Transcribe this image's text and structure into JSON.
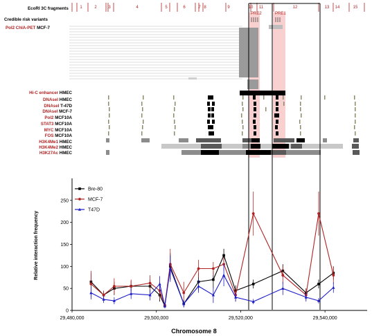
{
  "header": {
    "fragments_label": "EcoRI 3C fragments",
    "fragment_numbers": [
      "1",
      "2",
      "3",
      "4",
      "5",
      "6",
      "7",
      "8",
      "9",
      "10",
      "11",
      "12",
      "13",
      "14",
      "15"
    ],
    "risk_label": "Credible risk variants",
    "pre_labels": [
      "PRE2",
      "PRE1"
    ]
  },
  "tracks": [
    {
      "mark": "Pol2 ChIA-PET",
      "cell": "MCF-7"
    },
    {
      "mark": "Hi-C enhancer",
      "cell": "HMEC"
    },
    {
      "mark": "DNAseI",
      "cell": "HMEC"
    },
    {
      "mark": "DNAseI",
      "cell": "T-47D"
    },
    {
      "mark": "DNAseI",
      "cell": "MCF-7"
    },
    {
      "mark": "Pol2",
      "cell": "MCF10A"
    },
    {
      "mark": "STAT3",
      "cell": "MCF10A"
    },
    {
      "mark": "MYC",
      "cell": "MCF10A"
    },
    {
      "mark": "FOS",
      "cell": "MCF10A"
    },
    {
      "mark": "H3K4Me1",
      "cell": "HMEC"
    },
    {
      "mark": "H3K4Me2",
      "cell": "HMEC"
    },
    {
      "mark": "H3K27Ac",
      "cell": "HMEC"
    }
  ],
  "colors": {
    "bre80": "#000000",
    "mcf7": "#b22222",
    "t47d": "#1c1cc8",
    "track_label_red": "#b22222",
    "pre_highlight": "#f4a9a9",
    "signal_gray": "#8c8c8c"
  },
  "chart_data": {
    "type": "line",
    "xlabel": "Chromosome 8",
    "ylabel": "Relative interaction frequency",
    "xlim": [
      29480000,
      29550000
    ],
    "ylim": [
      0,
      300
    ],
    "x_ticks": [
      29480000,
      29500000,
      29520000,
      29540000
    ],
    "x_tick_labels": [
      "29,480,000",
      "29,500,000",
      "29,520,000",
      "29,540,000"
    ],
    "y_ticks": [
      0,
      50,
      100,
      150,
      200,
      250
    ],
    "x": [
      29484500,
      29487500,
      29490000,
      29494000,
      29498500,
      29500800,
      29502000,
      29503300,
      29506500,
      29510000,
      29513500,
      29516000,
      29518800,
      29523000,
      29530000,
      29535500,
      29538500,
      29542000
    ],
    "series": [
      {
        "name": "Bre-80",
        "color": "#000000",
        "marker": "square",
        "values": [
          65,
          35,
          50,
          55,
          55,
          35,
          10,
          100,
          15,
          65,
          70,
          125,
          45,
          60,
          90,
          40,
          60,
          85
        ],
        "errors": [
          20,
          8,
          15,
          12,
          15,
          15,
          5,
          30,
          8,
          20,
          20,
          15,
          12,
          10,
          15,
          10,
          10,
          15
        ]
      },
      {
        "name": "MCF-7",
        "color": "#b22222",
        "marker": "circle",
        "values": [
          60,
          35,
          55,
          55,
          62,
          45,
          12,
          105,
          40,
          95,
          95,
          105,
          35,
          220,
          80,
          35,
          220,
          80
        ],
        "errors": [
          30,
          10,
          18,
          15,
          18,
          20,
          6,
          35,
          25,
          20,
          15,
          15,
          15,
          50,
          20,
          12,
          50,
          20
        ]
      },
      {
        "name": "T47D",
        "color": "#1c1cc8",
        "marker": "triangle",
        "values": [
          40,
          25,
          22,
          38,
          35,
          60,
          10,
          95,
          15,
          55,
          35,
          80,
          30,
          20,
          50,
          30,
          22,
          52
        ],
        "errors": [
          15,
          8,
          8,
          12,
          12,
          18,
          5,
          30,
          8,
          15,
          18,
          25,
          10,
          6,
          15,
          10,
          6,
          12
        ]
      }
    ],
    "highlight_boxes": [
      [
        29521500,
        29527000
      ],
      [
        29527000,
        29540500
      ]
    ]
  }
}
